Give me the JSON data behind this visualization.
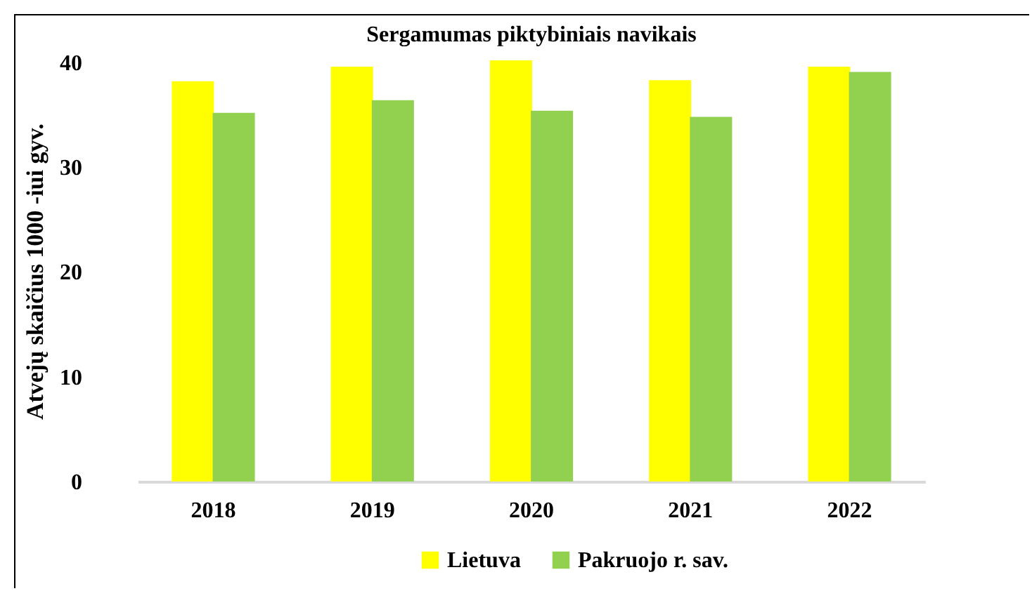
{
  "chart_data": {
    "type": "bar",
    "title": "Sergamumas piktybiniais  navikais",
    "ylabel": "Atvejų skaičius 1000 -iui gyv.",
    "categories": [
      "2018",
      "2019",
      "2020",
      "2021",
      "2022"
    ],
    "series": [
      {
        "name": "Lietuva",
        "color": "#ffff00",
        "values": [
          38.2,
          39.6,
          40.2,
          38.3,
          39.6
        ]
      },
      {
        "name": "Pakruojo r. sav.",
        "color": "#92d050",
        "values": [
          35.2,
          36.4,
          35.4,
          34.8,
          39.1
        ]
      }
    ],
    "ylim": [
      0,
      40.2
    ],
    "yticks": [
      0,
      10,
      20,
      30,
      40
    ],
    "grid": false,
    "legend": "bottom"
  }
}
